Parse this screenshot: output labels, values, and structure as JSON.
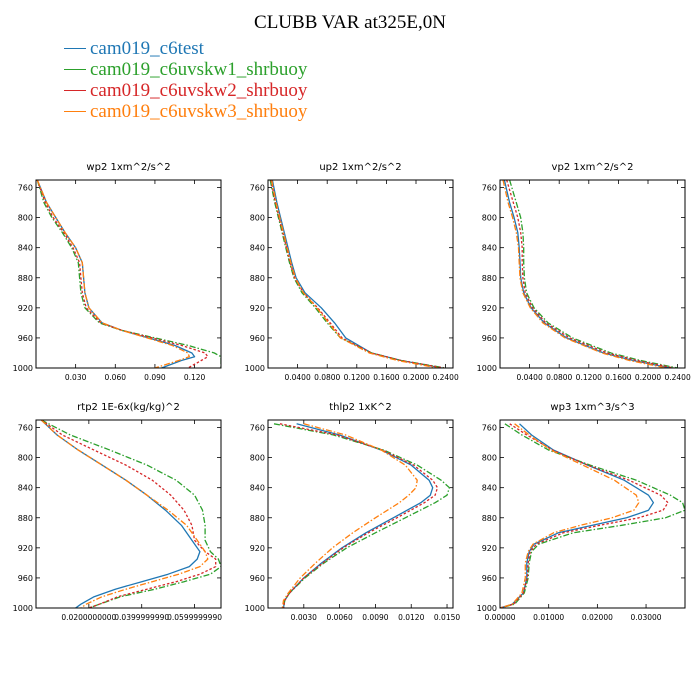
{
  "title": "CLUBB VAR at325E,0N",
  "series": [
    {
      "name": "cam019_c6test",
      "color": "#1f77b4",
      "dash": "solid"
    },
    {
      "name": "cam019_c6uvskw1_shrbuoy",
      "color": "#2ca02c",
      "dash": "dashdot"
    },
    {
      "name": "cam019_c6uvskw2_shrbuoy",
      "color": "#d62728",
      "dash": "dot"
    },
    {
      "name": "cam019_c6uvskw3_shrbuoy",
      "color": "#ff7f0e",
      "dash": "dashdot"
    }
  ],
  "chart_data": [
    {
      "type": "line",
      "title": "wp2  1xm^2/s^2",
      "xlim": [
        0,
        0.14
      ],
      "ylim": [
        750,
        1000
      ],
      "y_inverted": true,
      "xticks": [
        0.03,
        0.06,
        0.09,
        0.12
      ],
      "xtick_labels": [
        "0.030",
        "0.060",
        "0.090",
        "0.120"
      ],
      "yticks": [
        760,
        800,
        840,
        880,
        920,
        960,
        1000
      ],
      "ytick_labels": [
        "760",
        "800",
        "840",
        "880",
        "920",
        "960",
        "1000"
      ],
      "y": [
        750,
        780,
        800,
        820,
        840,
        860,
        880,
        900,
        920,
        940,
        950,
        960,
        970,
        980,
        985,
        990,
        1000
      ],
      "series_values": [
        [
          0.001,
          0.008,
          0.015,
          0.022,
          0.03,
          0.035,
          0.036,
          0.037,
          0.04,
          0.05,
          0.065,
          0.085,
          0.105,
          0.118,
          0.12,
          0.11,
          0.095
        ],
        [
          0.001,
          0.006,
          0.012,
          0.02,
          0.027,
          0.032,
          0.033,
          0.034,
          0.037,
          0.048,
          0.065,
          0.09,
          0.115,
          0.135,
          0.14,
          0.14,
          0.14
        ],
        [
          0.001,
          0.007,
          0.013,
          0.021,
          0.028,
          0.033,
          0.034,
          0.035,
          0.038,
          0.049,
          0.065,
          0.088,
          0.11,
          0.128,
          0.13,
          0.125,
          0.115
        ],
        [
          0.001,
          0.008,
          0.015,
          0.022,
          0.03,
          0.035,
          0.036,
          0.037,
          0.04,
          0.05,
          0.065,
          0.084,
          0.103,
          0.115,
          0.116,
          0.108,
          0.09
        ]
      ]
    },
    {
      "type": "line",
      "title": "up2  1xm^2/s^2",
      "xlim": [
        0,
        0.25
      ],
      "ylim": [
        750,
        1000
      ],
      "y_inverted": true,
      "xticks": [
        0.04,
        0.08,
        0.12,
        0.16,
        0.2,
        0.24
      ],
      "xtick_labels": [
        "0.0400",
        "0.0800",
        "0.1200",
        "0.1600",
        "0.2000",
        "0.2400"
      ],
      "yticks": [
        760,
        800,
        840,
        880,
        920,
        960,
        1000
      ],
      "ytick_labels": [
        "760",
        "800",
        "840",
        "880",
        "920",
        "960",
        "1000"
      ],
      "y": [
        750,
        780,
        800,
        820,
        840,
        860,
        880,
        900,
        920,
        940,
        960,
        980,
        990,
        1000
      ],
      "series_values": [
        [
          0.006,
          0.012,
          0.017,
          0.022,
          0.027,
          0.032,
          0.038,
          0.05,
          0.072,
          0.09,
          0.105,
          0.14,
          0.18,
          0.235
        ],
        [
          0.003,
          0.009,
          0.014,
          0.019,
          0.024,
          0.029,
          0.035,
          0.046,
          0.064,
          0.08,
          0.098,
          0.14,
          0.18,
          0.24
        ],
        [
          0.004,
          0.01,
          0.015,
          0.02,
          0.025,
          0.03,
          0.036,
          0.048,
          0.067,
          0.084,
          0.1,
          0.14,
          0.18,
          0.238
        ],
        [
          0.005,
          0.011,
          0.016,
          0.021,
          0.026,
          0.031,
          0.037,
          0.048,
          0.066,
          0.082,
          0.098,
          0.137,
          0.175,
          0.23
        ]
      ]
    },
    {
      "type": "line",
      "title": "vp2  1xm^2/s^2",
      "xlim": [
        0,
        0.25
      ],
      "ylim": [
        750,
        1000
      ],
      "y_inverted": true,
      "xticks": [
        0.04,
        0.08,
        0.12,
        0.16,
        0.2,
        0.24
      ],
      "xtick_labels": [
        "0.0400",
        "0.0800",
        "0.1200",
        "0.1600",
        "0.2000",
        "0.2400"
      ],
      "yticks": [
        760,
        800,
        840,
        880,
        920,
        960,
        1000
      ],
      "ytick_labels": [
        "760",
        "800",
        "840",
        "880",
        "920",
        "960",
        "1000"
      ],
      "y": [
        750,
        780,
        800,
        820,
        840,
        860,
        880,
        900,
        920,
        940,
        960,
        980,
        990,
        1000
      ],
      "series_values": [
        [
          0.006,
          0.013,
          0.019,
          0.024,
          0.026,
          0.027,
          0.028,
          0.032,
          0.042,
          0.06,
          0.09,
          0.14,
          0.18,
          0.23
        ],
        [
          0.013,
          0.022,
          0.028,
          0.031,
          0.032,
          0.032,
          0.033,
          0.036,
          0.046,
          0.065,
          0.098,
          0.15,
          0.19,
          0.24
        ],
        [
          0.009,
          0.018,
          0.024,
          0.028,
          0.03,
          0.03,
          0.031,
          0.034,
          0.044,
          0.062,
          0.094,
          0.145,
          0.185,
          0.235
        ],
        [
          0.004,
          0.011,
          0.017,
          0.022,
          0.025,
          0.026,
          0.027,
          0.031,
          0.041,
          0.058,
          0.088,
          0.138,
          0.175,
          0.225
        ]
      ]
    },
    {
      "type": "line",
      "title": "rtp2  1E-6x(kg/kg)^2",
      "xlim": [
        0,
        0.07
      ],
      "ylim": [
        750,
        1000
      ],
      "y_inverted": true,
      "xticks": [
        0.02,
        0.04,
        0.06
      ],
      "xtick_labels": [
        "0.0200000000",
        "0.0399999990",
        "0.0599999990"
      ],
      "yticks": [
        760,
        800,
        840,
        880,
        920,
        960,
        1000
      ],
      "ytick_labels": [
        "760",
        "800",
        "840",
        "880",
        "920",
        "960",
        "1000"
      ],
      "y": [
        750,
        770,
        790,
        810,
        830,
        850,
        870,
        890,
        910,
        925,
        935,
        945,
        955,
        965,
        975,
        985,
        995,
        1000
      ],
      "series_values": [
        [
          0.002,
          0.008,
          0.016,
          0.025,
          0.034,
          0.042,
          0.049,
          0.055,
          0.059,
          0.062,
          0.061,
          0.058,
          0.05,
          0.04,
          0.03,
          0.022,
          0.017,
          0.015
        ],
        [
          0.002,
          0.013,
          0.028,
          0.042,
          0.053,
          0.06,
          0.063,
          0.064,
          0.064,
          0.066,
          0.069,
          0.07,
          0.066,
          0.056,
          0.045,
          0.032,
          0.024,
          0.02
        ],
        [
          0.002,
          0.01,
          0.022,
          0.034,
          0.044,
          0.051,
          0.056,
          0.059,
          0.06,
          0.064,
          0.068,
          0.068,
          0.062,
          0.053,
          0.042,
          0.031,
          0.024,
          0.02
        ],
        [
          0.002,
          0.008,
          0.016,
          0.025,
          0.034,
          0.042,
          0.05,
          0.057,
          0.061,
          0.064,
          0.065,
          0.062,
          0.054,
          0.044,
          0.034,
          0.025,
          0.019,
          0.017
        ]
      ]
    },
    {
      "type": "line",
      "title": "thlp2  1xK^2",
      "xlim": [
        0,
        0.0155
      ],
      "ylim": [
        750,
        1000
      ],
      "y_inverted": true,
      "xticks": [
        0.003,
        0.006,
        0.009,
        0.012,
        0.015
      ],
      "xtick_labels": [
        "0.0030",
        "0.0060",
        "0.0090",
        "0.0120",
        "0.0150"
      ],
      "yticks": [
        760,
        800,
        840,
        880,
        920,
        960,
        1000
      ],
      "ytick_labels": [
        "760",
        "800",
        "840",
        "880",
        "920",
        "960",
        "1000"
      ],
      "y": [
        755,
        770,
        790,
        810,
        830,
        840,
        850,
        860,
        880,
        900,
        920,
        940,
        960,
        980,
        990,
        1000
      ],
      "series_values": [
        [
          0.0024,
          0.006,
          0.0095,
          0.012,
          0.0135,
          0.0138,
          0.0136,
          0.0128,
          0.0105,
          0.0082,
          0.0062,
          0.0045,
          0.003,
          0.0018,
          0.0014,
          0.0013
        ],
        [
          0.0005,
          0.0055,
          0.0097,
          0.0125,
          0.0145,
          0.0152,
          0.015,
          0.014,
          0.0115,
          0.009,
          0.0066,
          0.0047,
          0.0031,
          0.0018,
          0.0014,
          0.0013
        ],
        [
          0.001,
          0.0058,
          0.0096,
          0.0122,
          0.0138,
          0.0142,
          0.014,
          0.0131,
          0.0108,
          0.0084,
          0.0063,
          0.0046,
          0.003,
          0.0018,
          0.0014,
          0.0013
        ],
        [
          0.003,
          0.0065,
          0.0095,
          0.0115,
          0.0125,
          0.0124,
          0.0118,
          0.011,
          0.009,
          0.0071,
          0.0054,
          0.004,
          0.0027,
          0.0017,
          0.0013,
          0.0012
        ]
      ]
    },
    {
      "type": "line",
      "title": "wp3  1xm^3/s^3",
      "xlim": [
        0,
        0.038
      ],
      "ylim": [
        750,
        1000
      ],
      "y_inverted": true,
      "xticks": [
        0.0,
        0.01,
        0.02,
        0.03
      ],
      "xtick_labels": [
        "0.00000",
        "0.01000",
        "0.02000",
        "0.03000"
      ],
      "yticks": [
        760,
        800,
        840,
        880,
        920,
        960,
        1000
      ],
      "ytick_labels": [
        "760",
        "800",
        "840",
        "880",
        "920",
        "960",
        "1000"
      ],
      "y": [
        755,
        770,
        790,
        810,
        830,
        850,
        860,
        870,
        880,
        890,
        900,
        915,
        925,
        940,
        960,
        980,
        995,
        1000
      ],
      "series_values": [
        [
          0.004,
          0.0065,
          0.011,
          0.018,
          0.0255,
          0.0305,
          0.0315,
          0.0305,
          0.026,
          0.019,
          0.012,
          0.007,
          0.006,
          0.0055,
          0.0055,
          0.0048,
          0.0025,
          0.0
        ],
        [
          0.001,
          0.0045,
          0.01,
          0.0185,
          0.028,
          0.035,
          0.0375,
          0.038,
          0.034,
          0.025,
          0.015,
          0.008,
          0.0065,
          0.006,
          0.0058,
          0.005,
          0.003,
          0.0
        ],
        [
          0.002,
          0.0055,
          0.0108,
          0.018,
          0.0265,
          0.033,
          0.0345,
          0.0335,
          0.0285,
          0.0205,
          0.013,
          0.0075,
          0.0062,
          0.0058,
          0.0056,
          0.0048,
          0.0028,
          0.0
        ],
        [
          0.003,
          0.006,
          0.0105,
          0.017,
          0.0235,
          0.028,
          0.0285,
          0.0275,
          0.023,
          0.0165,
          0.011,
          0.0068,
          0.0058,
          0.0052,
          0.0052,
          0.0045,
          0.0025,
          0.0
        ]
      ]
    }
  ]
}
